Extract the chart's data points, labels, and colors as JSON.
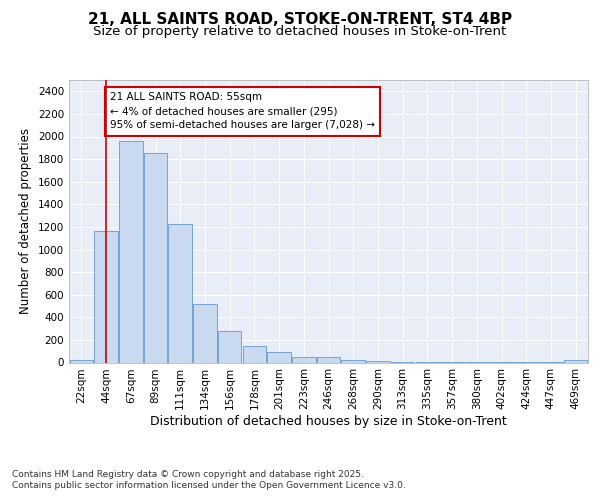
{
  "title1": "21, ALL SAINTS ROAD, STOKE-ON-TRENT, ST4 4BP",
  "title2": "Size of property relative to detached houses in Stoke-on-Trent",
  "xlabel": "Distribution of detached houses by size in Stoke-on-Trent",
  "ylabel": "Number of detached properties",
  "bin_labels": [
    "22sqm",
    "44sqm",
    "67sqm",
    "89sqm",
    "111sqm",
    "134sqm",
    "156sqm",
    "178sqm",
    "201sqm",
    "223sqm",
    "246sqm",
    "268sqm",
    "290sqm",
    "313sqm",
    "335sqm",
    "357sqm",
    "380sqm",
    "402sqm",
    "424sqm",
    "447sqm",
    "469sqm"
  ],
  "bar_values": [
    25,
    1160,
    1960,
    1855,
    1230,
    515,
    275,
    150,
    90,
    45,
    45,
    18,
    12,
    5,
    2,
    2,
    2,
    2,
    1,
    1,
    20
  ],
  "bar_color": "#c9d9f0",
  "bar_edgecolor": "#6699cc",
  "vline_x": 1.0,
  "vline_color": "#cc0000",
  "annotation_text": "21 ALL SAINTS ROAD: 55sqm\n← 4% of detached houses are smaller (295)\n95% of semi-detached houses are larger (7,028) →",
  "annotation_box_edgecolor": "#cc0000",
  "annotation_box_facecolor": "white",
  "ylim": [
    0,
    2500
  ],
  "yticks": [
    0,
    200,
    400,
    600,
    800,
    1000,
    1200,
    1400,
    1600,
    1800,
    2000,
    2200,
    2400
  ],
  "background_color": "#e8edf8",
  "grid_color": "white",
  "footnote1": "Contains HM Land Registry data © Crown copyright and database right 2025.",
  "footnote2": "Contains public sector information licensed under the Open Government Licence v3.0.",
  "title1_fontsize": 11,
  "title2_fontsize": 9.5,
  "xlabel_fontsize": 9,
  "ylabel_fontsize": 8.5,
  "tick_fontsize": 7.5,
  "footnote_fontsize": 6.5
}
